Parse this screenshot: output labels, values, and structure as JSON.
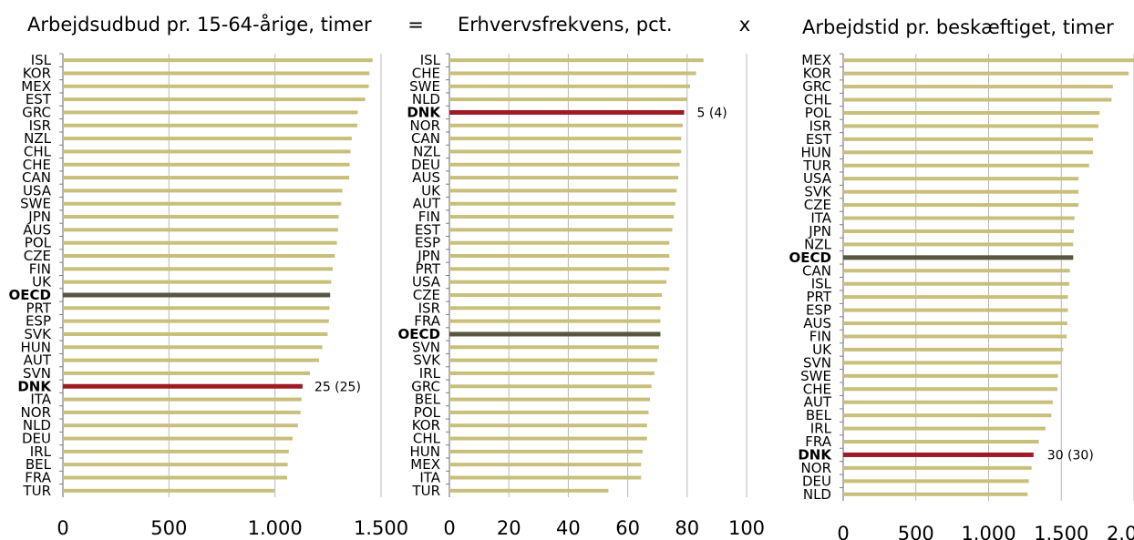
{
  "operators": {
    "equals": "=",
    "times": "x"
  },
  "colors": {
    "bar": "#c7bf7a",
    "highlight": "#9e1b25",
    "oecd": "#565641",
    "grid": "#b8b8b8",
    "axis": "#7f7f7f",
    "text": "#000000"
  },
  "chart_data": [
    {
      "type": "bar",
      "orientation": "horizontal",
      "title": "Arbejdsudbud pr. 15-64-årige, timer",
      "xlim": [
        0,
        1500
      ],
      "xticks": [
        "0",
        "500",
        "1.000",
        "1.500"
      ],
      "highlight": "DNK",
      "highlight_label": "25 (25)",
      "bold": [
        "DNK",
        "OECD"
      ],
      "categories": [
        "ISL",
        "KOR",
        "MEX",
        "EST",
        "GRC",
        "ISR",
        "NZL",
        "CHL",
        "CHE",
        "CAN",
        "USA",
        "SWE",
        "JPN",
        "AUS",
        "POL",
        "CZE",
        "FIN",
        "UK",
        "OECD",
        "PRT",
        "ESP",
        "SVK",
        "HUN",
        "AUT",
        "SVN",
        "DNK",
        "ITA",
        "NOR",
        "NLD",
        "DEU",
        "IRL",
        "BEL",
        "FRA",
        "TUR"
      ],
      "values": [
        1460,
        1445,
        1442,
        1425,
        1390,
        1388,
        1362,
        1356,
        1352,
        1350,
        1318,
        1312,
        1300,
        1297,
        1292,
        1282,
        1272,
        1265,
        1260,
        1257,
        1254,
        1248,
        1223,
        1208,
        1165,
        1130,
        1125,
        1120,
        1108,
        1083,
        1065,
        1060,
        1057,
        997
      ]
    },
    {
      "type": "bar",
      "orientation": "horizontal",
      "title": "Erhvervsfrekvens, pct.",
      "xlim": [
        0,
        100
      ],
      "xticks": [
        "0",
        "20",
        "40",
        "60",
        "80",
        "100"
      ],
      "highlight": "DNK",
      "highlight_label": "5 (4)",
      "bold": [
        "DNK",
        "OECD"
      ],
      "categories": [
        "ISL",
        "CHE",
        "SWE",
        "NLD",
        "DNK",
        "NOR",
        "CAN",
        "NZL",
        "DEU",
        "AUS",
        "UK",
        "AUT",
        "FIN",
        "EST",
        "ESP",
        "JPN",
        "PRT",
        "USA",
        "CZE",
        "ISR",
        "FRA",
        "OECD",
        "SVN",
        "SVK",
        "IRL",
        "GRC",
        "BEL",
        "POL",
        "KOR",
        "CHL",
        "HUN",
        "MEX",
        "ITA",
        "TUR"
      ],
      "values": [
        85.5,
        83,
        81,
        80,
        79,
        78.5,
        78,
        78,
        77.5,
        77,
        76.5,
        76,
        75.5,
        75,
        74,
        74,
        74,
        73,
        71.5,
        71,
        71,
        71,
        70.5,
        70,
        69,
        68,
        67.5,
        67,
        66.5,
        66.5,
        65,
        64.5,
        64.5,
        53.5
      ]
    },
    {
      "type": "bar",
      "orientation": "horizontal",
      "title": "Arbejdstid pr. beskæftiget, timer",
      "xlim": [
        0,
        2200
      ],
      "xticks": [
        "0",
        "500",
        "1.000",
        "1.500",
        "2.000"
      ],
      "highlight": "DNK",
      "highlight_label": "30 (30)",
      "bold": [
        "DNK",
        "OECD"
      ],
      "categories": [
        "MEX",
        "KOR",
        "GRC",
        "CHL",
        "POL",
        "ISR",
        "EST",
        "HUN",
        "TUR",
        "USA",
        "SVK",
        "CZE",
        "ITA",
        "JPN",
        "NZL",
        "OECD",
        "CAN",
        "ISL",
        "PRT",
        "ESP",
        "AUS",
        "FIN",
        "UK",
        "SVN",
        "SWE",
        "CHE",
        "AUT",
        "BEL",
        "IRL",
        "FRA",
        "DNK",
        "NOR",
        "DEU",
        "NLD"
      ],
      "values": [
        2200,
        2160,
        2040,
        2030,
        1940,
        1930,
        1890,
        1890,
        1860,
        1780,
        1780,
        1780,
        1750,
        1745,
        1740,
        1740,
        1715,
        1710,
        1700,
        1700,
        1695,
        1690,
        1665,
        1650,
        1625,
        1620,
        1585,
        1575,
        1530,
        1480,
        1440,
        1425,
        1405,
        1395
      ]
    }
  ]
}
